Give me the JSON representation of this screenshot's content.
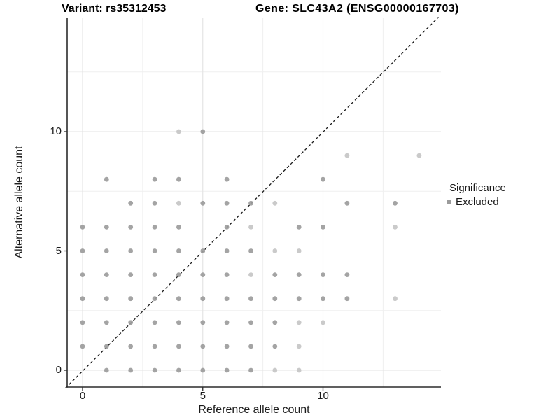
{
  "chart_data": {
    "type": "scatter",
    "title_left": "Variant: rs35312453",
    "title_right": "Gene: SLC43A2 (ENSG00000167703)",
    "xlabel": "Reference allele count",
    "ylabel": "Alternative allele count",
    "xlim": [
      -0.7,
      14.9
    ],
    "ylim": [
      -0.7,
      14.9
    ],
    "x_major_ticks": [
      0,
      5,
      10
    ],
    "y_major_ticks": [
      0,
      5,
      10
    ],
    "x_minor_gridlines": [
      2.5,
      7.5,
      12.5
    ],
    "y_minor_gridlines": [
      2.5,
      7.5,
      12.5
    ],
    "grid": "major+minor",
    "identity_line": {
      "slope": 1,
      "intercept": 0,
      "style": "dashed",
      "color": "#1a1a1a"
    },
    "legend": {
      "title": "Significance",
      "position": "right",
      "items": [
        {
          "label": "Excluded",
          "color": "#9b9b9b",
          "marker": "circle"
        }
      ]
    },
    "point_colors": {
      "m": "#9c9c9c",
      "l": "#c5c5c5"
    },
    "points": [
      [
        1,
        0,
        "m"
      ],
      [
        2,
        0,
        "m"
      ],
      [
        3,
        0,
        "m"
      ],
      [
        4,
        0,
        "m"
      ],
      [
        5,
        0,
        "m"
      ],
      [
        6,
        0,
        "m"
      ],
      [
        7,
        0,
        "m"
      ],
      [
        8,
        0,
        "l"
      ],
      [
        9,
        0,
        "l"
      ],
      [
        0,
        1,
        "m"
      ],
      [
        1,
        1,
        "m"
      ],
      [
        2,
        1,
        "m"
      ],
      [
        3,
        1,
        "m"
      ],
      [
        4,
        1,
        "m"
      ],
      [
        5,
        1,
        "m"
      ],
      [
        6,
        1,
        "m"
      ],
      [
        7,
        1,
        "m"
      ],
      [
        8,
        1,
        "m"
      ],
      [
        9,
        1,
        "l"
      ],
      [
        0,
        2,
        "m"
      ],
      [
        1,
        2,
        "m"
      ],
      [
        2,
        2,
        "m"
      ],
      [
        3,
        2,
        "m"
      ],
      [
        4,
        2,
        "m"
      ],
      [
        5,
        2,
        "m"
      ],
      [
        6,
        2,
        "m"
      ],
      [
        7,
        2,
        "m"
      ],
      [
        8,
        2,
        "m"
      ],
      [
        9,
        2,
        "l"
      ],
      [
        10,
        2,
        "l"
      ],
      [
        0,
        3,
        "m"
      ],
      [
        1,
        3,
        "m"
      ],
      [
        2,
        3,
        "m"
      ],
      [
        3,
        3,
        "m"
      ],
      [
        4,
        3,
        "m"
      ],
      [
        5,
        3,
        "m"
      ],
      [
        6,
        3,
        "m"
      ],
      [
        7,
        3,
        "m"
      ],
      [
        8,
        3,
        "m"
      ],
      [
        9,
        3,
        "m"
      ],
      [
        10,
        3,
        "m"
      ],
      [
        11,
        3,
        "m"
      ],
      [
        13,
        3,
        "l"
      ],
      [
        0,
        4,
        "m"
      ],
      [
        1,
        4,
        "m"
      ],
      [
        2,
        4,
        "m"
      ],
      [
        3,
        4,
        "m"
      ],
      [
        4,
        4,
        "m"
      ],
      [
        5,
        4,
        "m"
      ],
      [
        6,
        4,
        "m"
      ],
      [
        7,
        4,
        "l"
      ],
      [
        8,
        4,
        "m"
      ],
      [
        9,
        4,
        "m"
      ],
      [
        10,
        4,
        "m"
      ],
      [
        11,
        4,
        "m"
      ],
      [
        0,
        5,
        "m"
      ],
      [
        1,
        5,
        "m"
      ],
      [
        2,
        5,
        "m"
      ],
      [
        3,
        5,
        "m"
      ],
      [
        4,
        5,
        "m"
      ],
      [
        5,
        5,
        "m"
      ],
      [
        6,
        5,
        "m"
      ],
      [
        7,
        5,
        "m"
      ],
      [
        8,
        5,
        "l"
      ],
      [
        9,
        5,
        "l"
      ],
      [
        0,
        6,
        "m"
      ],
      [
        1,
        6,
        "m"
      ],
      [
        2,
        6,
        "m"
      ],
      [
        3,
        6,
        "m"
      ],
      [
        4,
        6,
        "m"
      ],
      [
        6,
        6,
        "m"
      ],
      [
        7,
        6,
        "l"
      ],
      [
        9,
        6,
        "m"
      ],
      [
        10,
        6,
        "m"
      ],
      [
        13,
        6,
        "l"
      ],
      [
        2,
        7,
        "m"
      ],
      [
        3,
        7,
        "m"
      ],
      [
        4,
        7,
        "l"
      ],
      [
        5,
        7,
        "m"
      ],
      [
        6,
        7,
        "m"
      ],
      [
        7,
        7,
        "m"
      ],
      [
        8,
        7,
        "l"
      ],
      [
        11,
        7,
        "m"
      ],
      [
        13,
        7,
        "m"
      ],
      [
        1,
        8,
        "m"
      ],
      [
        3,
        8,
        "m"
      ],
      [
        4,
        8,
        "m"
      ],
      [
        6,
        8,
        "m"
      ],
      [
        10,
        8,
        "m"
      ],
      [
        11,
        9,
        "l"
      ],
      [
        14,
        9,
        "l"
      ],
      [
        4,
        10,
        "l"
      ],
      [
        5,
        10,
        "m"
      ]
    ],
    "style_colors": {
      "axis_line": "#2b2b2b",
      "major_grid": "#e3e3e3",
      "minor_grid": "#efefef",
      "tick_mark": "#2b2b2b"
    }
  }
}
